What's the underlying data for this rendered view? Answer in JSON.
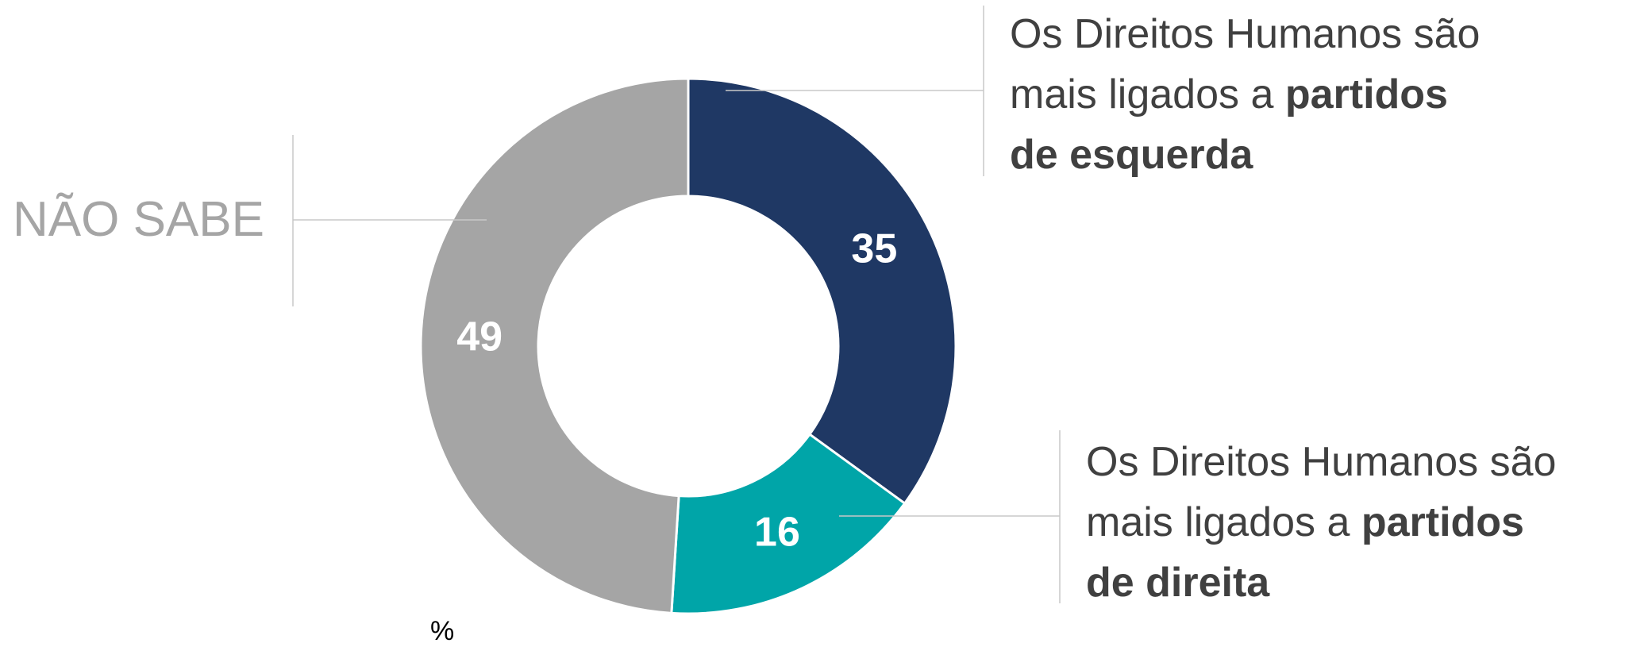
{
  "chart_data": {
    "type": "donut",
    "labels": [
      [
        [
          {
            "text": "Os Direitos Humanos são",
            "bold": false
          }
        ],
        [
          {
            "text": "mais ligados a ",
            "bold": false
          },
          {
            "text": "partidos",
            "bold": true
          }
        ],
        [
          {
            "text": "de esquerda",
            "bold": true
          }
        ]
      ],
      [
        [
          {
            "text": "Os Direitos Humanos são",
            "bold": false
          }
        ],
        [
          {
            "text": "mais ligados a ",
            "bold": false
          },
          {
            "text": "partidos",
            "bold": true
          }
        ],
        [
          {
            "text": "de direita",
            "bold": true
          }
        ]
      ],
      [
        [
          {
            "text": "NÃO SABE",
            "bold": false
          }
        ]
      ]
    ],
    "values": [
      35,
      16,
      49
    ],
    "colors": [
      "#1f3864",
      "#00a5a8",
      "#a5a5a5"
    ],
    "label_colors": [
      "#404040",
      "#404040",
      "#a5a5a5"
    ],
    "unit_label": "%"
  }
}
